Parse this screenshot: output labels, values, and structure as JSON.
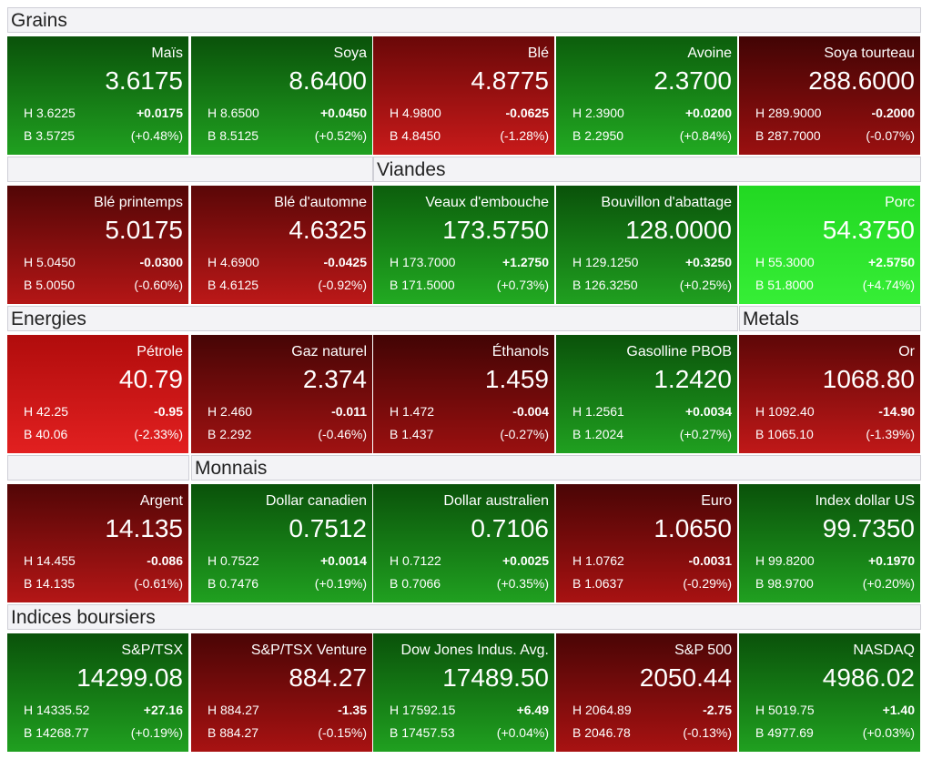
{
  "sections": [
    {
      "title": "Grains"
    },
    {
      "title": "Viandes"
    },
    {
      "title": "Energies"
    },
    {
      "title": "Metals"
    },
    {
      "title": "Monnais"
    },
    {
      "title": "Indices boursiers"
    }
  ],
  "tiles": [
    {
      "name": "Maïs",
      "price": "3.6175",
      "high": "H 3.6225",
      "change": "+0.0175",
      "low": "B 3.5725",
      "pct": "(+0.48%)",
      "colors": [
        "#0a520a",
        "#20a020"
      ]
    },
    {
      "name": "Soya",
      "price": "8.6400",
      "high": "H 8.6500",
      "change": "+0.0450",
      "low": "B 8.5125",
      "pct": "(+0.52%)",
      "colors": [
        "#0a520a",
        "#20a020"
      ]
    },
    {
      "name": "Blé",
      "price": "4.8775",
      "high": "H 4.9800",
      "change": "-0.0625",
      "low": "B 4.8450",
      "pct": "(-1.28%)",
      "colors": [
        "#6a0808",
        "#c81a1a"
      ]
    },
    {
      "name": "Avoine",
      "price": "2.3700",
      "high": "H 2.3900",
      "change": "+0.0200",
      "low": "B 2.2950",
      "pct": "(+0.84%)",
      "colors": [
        "#0c5e0c",
        "#22aa22"
      ]
    },
    {
      "name": "Soya tourteau",
      "price": "288.6000",
      "high": "H 289.9000",
      "change": "-0.2000",
      "low": "B 287.7000",
      "pct": "(-0.07%)",
      "colors": [
        "#420404",
        "#9a1010"
      ]
    },
    {
      "name": "Blé printemps",
      "price": "5.0175",
      "high": "H 5.0450",
      "change": "-0.0300",
      "low": "B 5.0050",
      "pct": "(-0.60%)",
      "colors": [
        "#520606",
        "#b41616"
      ]
    },
    {
      "name": "Blé d'automne",
      "price": "4.6325",
      "high": "H 4.6900",
      "change": "-0.0425",
      "low": "B 4.6125",
      "pct": "(-0.92%)",
      "colors": [
        "#5a0707",
        "#bc1818"
      ]
    },
    {
      "name": "Veaux d'embouche",
      "price": "173.5750",
      "high": "H 173.7000",
      "change": "+1.2750",
      "low": "B 171.5000",
      "pct": "(+0.73%)",
      "colors": [
        "#0c5e0c",
        "#22aa22"
      ]
    },
    {
      "name": "Bouvillon d'abattage",
      "price": "128.0000",
      "high": "H 129.1250",
      "change": "+0.3250",
      "low": "B 126.3250",
      "pct": "(+0.25%)",
      "colors": [
        "#0a520a",
        "#20a020"
      ]
    },
    {
      "name": "Porc",
      "price": "54.3750",
      "high": "H 55.3000",
      "change": "+2.5750",
      "low": "B 51.8000",
      "pct": "(+4.74%)",
      "colors": [
        "#22d822",
        "#36ee36"
      ]
    },
    {
      "name": "Pétrole",
      "price": "40.79",
      "high": "H 42.25",
      "change": "-0.95",
      "low": "B 40.06",
      "pct": "(-2.33%)",
      "colors": [
        "#b00c0c",
        "#e22020"
      ]
    },
    {
      "name": "Gaz naturel",
      "price": "2.374",
      "high": "H 2.460",
      "change": "-0.011",
      "low": "B 2.292",
      "pct": "(-0.46%)",
      "colors": [
        "#460505",
        "#a01212"
      ]
    },
    {
      "name": "Éthanols",
      "price": "1.459",
      "high": "H 1.472",
      "change": "-0.004",
      "low": "B 1.437",
      "pct": "(-0.27%)",
      "colors": [
        "#420404",
        "#9a1010"
      ]
    },
    {
      "name": "Gasolline PBOB",
      "price": "1.2420",
      "high": "H 1.2561",
      "change": "+0.0034",
      "low": "B 1.2024",
      "pct": "(+0.27%)",
      "colors": [
        "#0a520a",
        "#20a020"
      ]
    },
    {
      "name": "Or",
      "price": "1068.80",
      "high": "H 1092.40",
      "change": "-14.90",
      "low": "B 1065.10",
      "pct": "(-1.39%)",
      "colors": [
        "#5e0707",
        "#c01818"
      ]
    },
    {
      "name": "Argent",
      "price": "14.135",
      "high": "H 14.455",
      "change": "-0.086",
      "low": "B 14.135",
      "pct": "(-0.61%)",
      "colors": [
        "#520606",
        "#b41616"
      ]
    },
    {
      "name": "Dollar canadien",
      "price": "0.7512",
      "high": "H 0.7522",
      "change": "+0.0014",
      "low": "B 0.7476",
      "pct": "(+0.19%)",
      "colors": [
        "#0a520a",
        "#20a020"
      ]
    },
    {
      "name": "Dollar australien",
      "price": "0.7106",
      "high": "H 0.7122",
      "change": "+0.0025",
      "low": "B 0.7066",
      "pct": "(+0.35%)",
      "colors": [
        "#0a520a",
        "#20a020"
      ]
    },
    {
      "name": "Euro",
      "price": "1.0650",
      "high": "H 1.0762",
      "change": "-0.0031",
      "low": "B 1.0637",
      "pct": "(-0.29%)",
      "colors": [
        "#4a0505",
        "#a81212"
      ]
    },
    {
      "name": "Index dollar US",
      "price": "99.7350",
      "high": "H 99.8200",
      "change": "+0.1970",
      "low": "B 98.9700",
      "pct": "(+0.20%)",
      "colors": [
        "#0a520a",
        "#20a020"
      ]
    },
    {
      "name": "S&P/TSX",
      "price": "14299.08",
      "high": "H 14335.52",
      "change": "+27.16",
      "low": "B 14268.77",
      "pct": "(+0.19%)",
      "colors": [
        "#0a520a",
        "#20a020"
      ]
    },
    {
      "name": "S&P/TSX Venture",
      "price": "884.27",
      "high": "H 884.27",
      "change": "-1.35",
      "low": "B 884.27",
      "pct": "(-0.15%)",
      "colors": [
        "#4a0505",
        "#a81212"
      ]
    },
    {
      "name": "Dow Jones Indus. Avg.",
      "price": "17489.50",
      "high": "H 17592.15",
      "change": "+6.49",
      "low": "B 17457.53",
      "pct": "(+0.04%)",
      "colors": [
        "#0a520a",
        "#20a020"
      ]
    },
    {
      "name": "S&P 500",
      "price": "2050.44",
      "high": "H 2064.89",
      "change": "-2.75",
      "low": "B 2046.78",
      "pct": "(-0.13%)",
      "colors": [
        "#4a0505",
        "#a81212"
      ]
    },
    {
      "name": "NASDAQ",
      "price": "4986.02",
      "high": "H 5019.75",
      "change": "+1.40",
      "low": "B 4977.69",
      "pct": "(+0.03%)",
      "colors": [
        "#0a520a",
        "#20a020"
      ]
    }
  ]
}
